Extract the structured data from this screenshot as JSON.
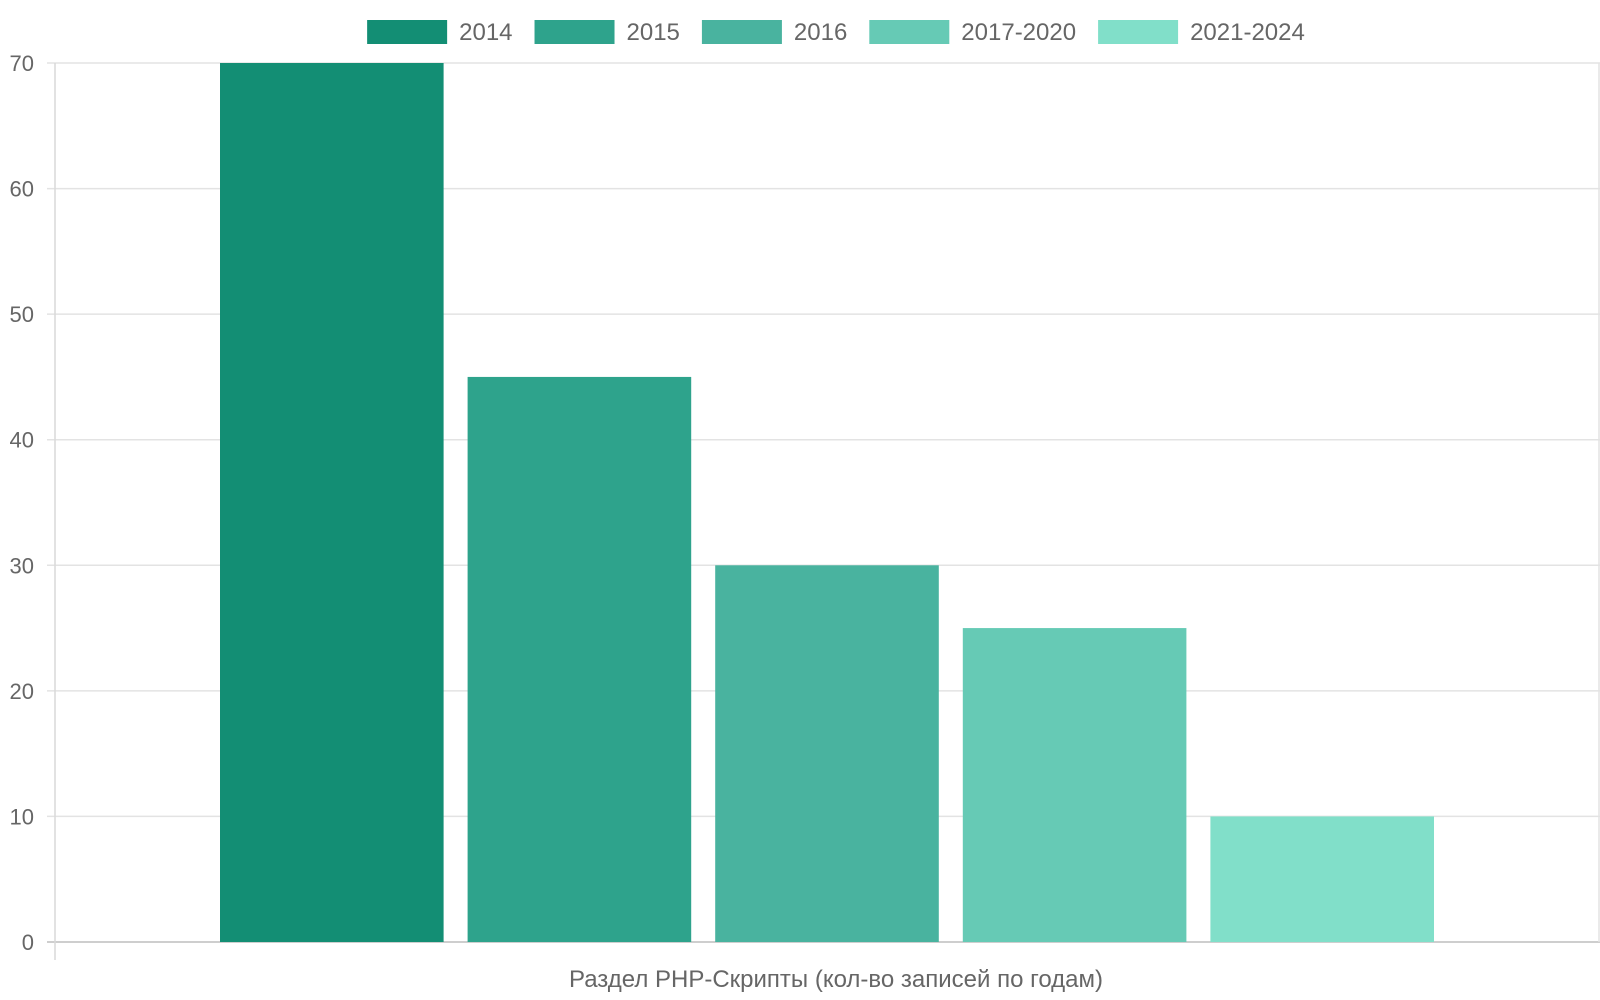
{
  "chart_data": {
    "type": "bar",
    "categories": [
      "Раздел PHP-Скрипты (кол-во записей по годам)"
    ],
    "series": [
      {
        "name": "2014",
        "values": [
          70
        ],
        "color": "#138e74"
      },
      {
        "name": "2015",
        "values": [
          45
        ],
        "color": "#2ea38c"
      },
      {
        "name": "2016",
        "values": [
          30
        ],
        "color": "#49b39f"
      },
      {
        "name": "2017-2020",
        "values": [
          25
        ],
        "color": "#66cab5"
      },
      {
        "name": "2021-2024",
        "values": [
          10
        ],
        "color": "#81dfc9"
      }
    ],
    "title": "",
    "xlabel": "Раздел PHP-Скрипты (кол-во записей по годам)",
    "ylabel": "",
    "ylim": [
      0,
      70
    ],
    "yticks": [
      0,
      10,
      20,
      30,
      40,
      50,
      60,
      70
    ],
    "grid": true,
    "legend_position": "top"
  }
}
